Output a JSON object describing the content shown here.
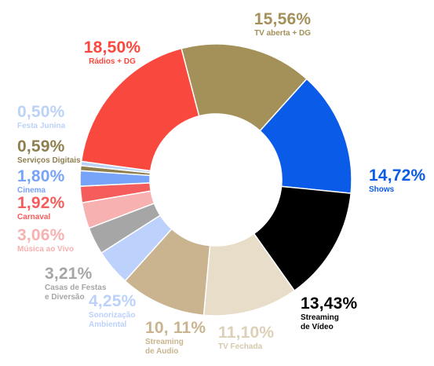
{
  "chart_data": {
    "type": "pie",
    "variant": "donut",
    "legend": "none",
    "slices": [
      {
        "value_label": "15,56%",
        "label": "TV aberta + DG",
        "value": 15.56,
        "color": "#a39159"
      },
      {
        "value_label": "14,72%",
        "label": "Shows",
        "value": 14.72,
        "color": "#0a5ce8"
      },
      {
        "value_label": "13,43%",
        "label": "Streaming\nde Vídeo",
        "value": 13.43,
        "color": "#000000"
      },
      {
        "value_label": "11,10%",
        "label": "TV Fechada",
        "value": 11.1,
        "color": "#e7ddc9"
      },
      {
        "value_label": "10, 11%",
        "label": "Streaming\nde Audio",
        "value": 10.11,
        "color": "#c9b48f"
      },
      {
        "value_label": "4,25%",
        "label": "Sonorização\nAmbiental",
        "value": 4.25,
        "color": "#bcd1fb"
      },
      {
        "value_label": "3,21%",
        "label": "Casas de Festas\ne Diversão",
        "value": 3.21,
        "color": "#a6a6a6"
      },
      {
        "value_label": "3,06%",
        "label": "Música ao Vivo",
        "value": 3.06,
        "color": "#f7b1b1"
      },
      {
        "value_label": "1,92%",
        "label": "Carnaval",
        "value": 1.92,
        "color": "#f55c5c"
      },
      {
        "value_label": "1,80%",
        "label": "Cinema",
        "value": 1.8,
        "color": "#77a3f8"
      },
      {
        "value_label": "0,59%",
        "label": "Serviços Digitais",
        "value": 0.59,
        "color": "#8f7f4f"
      },
      {
        "value_label": "0,50%",
        "label": "Festa Junina",
        "value": 0.5,
        "color": "#bcd2f7"
      },
      {
        "value_label": "18,50%",
        "label": "Rádios + DG",
        "value": 18.5,
        "color": "#f9483e"
      }
    ]
  }
}
